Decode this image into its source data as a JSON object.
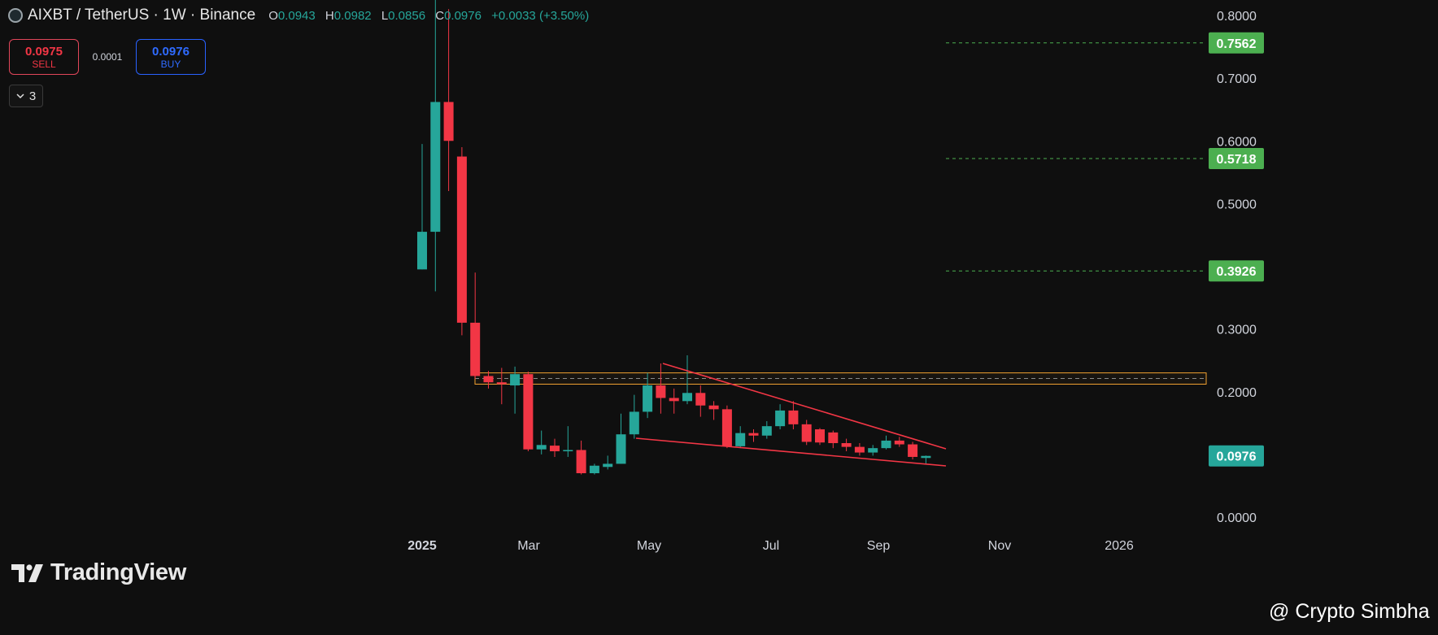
{
  "header": {
    "pair": "AIXBT / TetherUS · 1W · Binance",
    "ohlc": [
      {
        "k": "O",
        "v": "0.0943"
      },
      {
        "k": "H",
        "v": "0.0982"
      },
      {
        "k": "L",
        "v": "0.0856"
      },
      {
        "k": "C",
        "v": "0.0976"
      }
    ],
    "change": "+0.0033 (+3.50%)"
  },
  "trade": {
    "sell_price": "0.0975",
    "sell_label": "SELL",
    "spread": "0.0001",
    "buy_price": "0.0976",
    "buy_label": "BUY"
  },
  "indicators_toggle": "3",
  "branding": {
    "logo_text": "TradingView",
    "watermark": "@ Crypto Simbha"
  },
  "colors": {
    "up": "#26a69a",
    "down": "#f23645",
    "level_label": "#4caf50",
    "zone": "#f0a030",
    "wedge": "#f23645"
  },
  "chart_data": {
    "type": "candlestick",
    "timeframe": "1W",
    "ylim": [
      0,
      0.8
    ],
    "y_ticks": [
      "0.8000",
      "0.7000",
      "0.6000",
      "0.5000",
      "0.3000",
      "0.2000",
      "0.0000"
    ],
    "x_ticks": [
      "2025",
      "Mar",
      "May",
      "Jul",
      "Sep",
      "Nov",
      "2026"
    ],
    "current_price": "0.0976",
    "levels": [
      "0.7562",
      "0.5718",
      "0.3926"
    ],
    "zone": [
      0.212,
      0.23
    ],
    "candles": [
      {
        "o": 0.395,
        "h": 0.595,
        "l": 0.395,
        "c": 0.455
      },
      {
        "o": 0.455,
        "h": 0.94,
        "l": 0.36,
        "c": 0.662
      },
      {
        "o": 0.662,
        "h": 0.81,
        "l": 0.52,
        "c": 0.6
      },
      {
        "o": 0.575,
        "h": 0.59,
        "l": 0.29,
        "c": 0.31
      },
      {
        "o": 0.31,
        "h": 0.39,
        "l": 0.22,
        "c": 0.225
      },
      {
        "o": 0.225,
        "h": 0.233,
        "l": 0.205,
        "c": 0.215
      },
      {
        "o": 0.215,
        "h": 0.238,
        "l": 0.18,
        "c": 0.212
      },
      {
        "o": 0.21,
        "h": 0.24,
        "l": 0.165,
        "c": 0.228
      },
      {
        "o": 0.228,
        "h": 0.232,
        "l": 0.105,
        "c": 0.108
      },
      {
        "o": 0.108,
        "h": 0.138,
        "l": 0.1,
        "c": 0.115
      },
      {
        "o": 0.114,
        "h": 0.125,
        "l": 0.096,
        "c": 0.105
      },
      {
        "o": 0.105,
        "h": 0.145,
        "l": 0.096,
        "c": 0.107
      },
      {
        "o": 0.107,
        "h": 0.122,
        "l": 0.068,
        "c": 0.07
      },
      {
        "o": 0.07,
        "h": 0.085,
        "l": 0.068,
        "c": 0.082
      },
      {
        "o": 0.08,
        "h": 0.098,
        "l": 0.076,
        "c": 0.085
      },
      {
        "o": 0.085,
        "h": 0.165,
        "l": 0.085,
        "c": 0.132
      },
      {
        "o": 0.132,
        "h": 0.195,
        "l": 0.125,
        "c": 0.168
      },
      {
        "o": 0.168,
        "h": 0.23,
        "l": 0.158,
        "c": 0.21
      },
      {
        "o": 0.21,
        "h": 0.245,
        "l": 0.165,
        "c": 0.19
      },
      {
        "o": 0.19,
        "h": 0.205,
        "l": 0.165,
        "c": 0.185
      },
      {
        "o": 0.185,
        "h": 0.258,
        "l": 0.18,
        "c": 0.198
      },
      {
        "o": 0.198,
        "h": 0.21,
        "l": 0.16,
        "c": 0.178
      },
      {
        "o": 0.178,
        "h": 0.185,
        "l": 0.155,
        "c": 0.172
      },
      {
        "o": 0.172,
        "h": 0.178,
        "l": 0.11,
        "c": 0.113
      },
      {
        "o": 0.113,
        "h": 0.145,
        "l": 0.11,
        "c": 0.134
      },
      {
        "o": 0.134,
        "h": 0.14,
        "l": 0.12,
        "c": 0.13
      },
      {
        "o": 0.13,
        "h": 0.153,
        "l": 0.125,
        "c": 0.145
      },
      {
        "o": 0.145,
        "h": 0.18,
        "l": 0.14,
        "c": 0.17
      },
      {
        "o": 0.17,
        "h": 0.185,
        "l": 0.14,
        "c": 0.148
      },
      {
        "o": 0.148,
        "h": 0.155,
        "l": 0.115,
        "c": 0.12
      },
      {
        "o": 0.14,
        "h": 0.142,
        "l": 0.115,
        "c": 0.119
      },
      {
        "o": 0.135,
        "h": 0.138,
        "l": 0.11,
        "c": 0.118
      },
      {
        "o": 0.118,
        "h": 0.125,
        "l": 0.105,
        "c": 0.112
      },
      {
        "o": 0.112,
        "h": 0.118,
        "l": 0.098,
        "c": 0.103
      },
      {
        "o": 0.103,
        "h": 0.115,
        "l": 0.098,
        "c": 0.11
      },
      {
        "o": 0.11,
        "h": 0.13,
        "l": 0.108,
        "c": 0.122
      },
      {
        "o": 0.122,
        "h": 0.128,
        "l": 0.112,
        "c": 0.116
      },
      {
        "o": 0.116,
        "h": 0.12,
        "l": 0.092,
        "c": 0.096
      },
      {
        "o": 0.0943,
        "h": 0.0982,
        "l": 0.0856,
        "c": 0.0976
      }
    ]
  }
}
